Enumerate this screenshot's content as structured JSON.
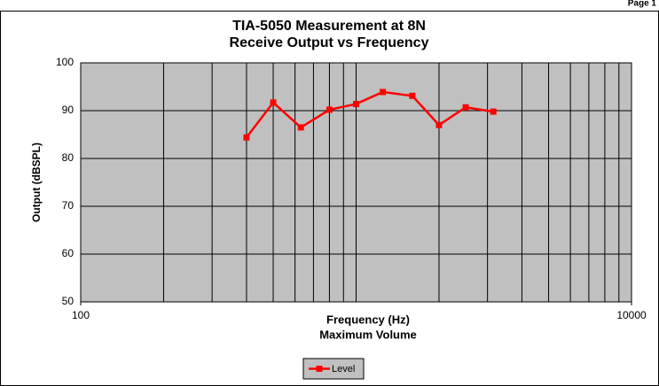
{
  "page": "Page 1",
  "chart_data": {
    "type": "line",
    "title": "TIA-5050 Measurement at 8N",
    "subtitle": "Receive Output vs Frequency",
    "x_label": "Frequency (Hz)",
    "x_sublabel": "Maximum Volume",
    "y_label": "Output (dBSPL)",
    "x": [
      400,
      500,
      630,
      800,
      1000,
      1250,
      1600,
      2000,
      2500,
      3150
    ],
    "series": [
      {
        "name": "Level",
        "color": "#ff0000",
        "values": [
          84.4,
          91.7,
          86.5,
          90.2,
          91.4,
          93.9,
          93.1,
          87.0,
          90.7,
          89.8
        ]
      }
    ],
    "xscale": "log",
    "xlim": [
      100,
      10000
    ],
    "xticks": [
      100,
      10000
    ],
    "xgrid": [
      100,
      200,
      300,
      400,
      500,
      600,
      700,
      800,
      900,
      1000,
      2000,
      3000,
      4000,
      5000,
      6000,
      7000,
      8000,
      9000,
      10000
    ],
    "ylim": [
      50,
      100
    ],
    "yticks": [
      50,
      60,
      70,
      80,
      90,
      100
    ],
    "grid": true,
    "legend": "bottom"
  }
}
